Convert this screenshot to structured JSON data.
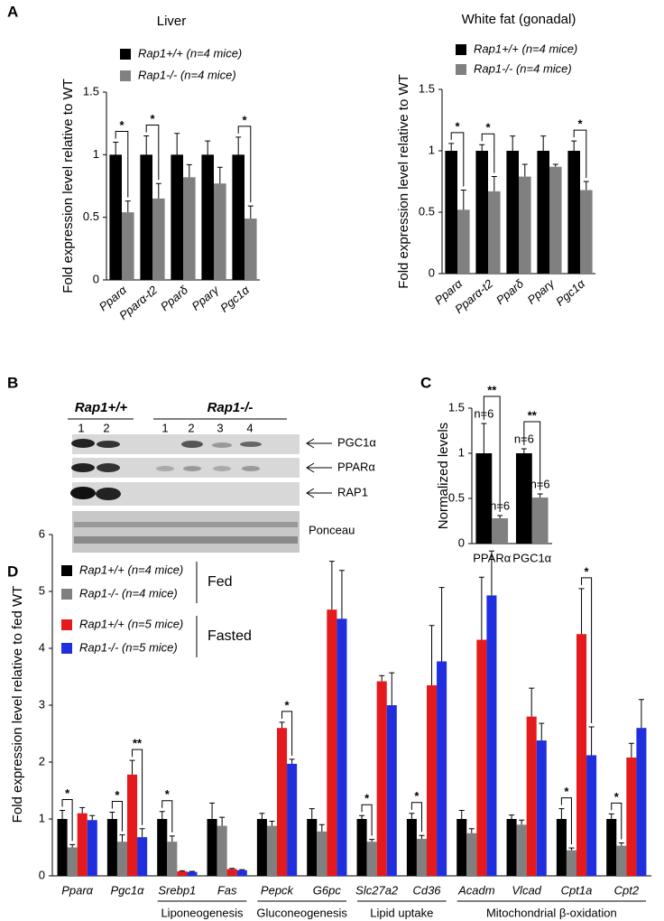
{
  "panels": [
    "A",
    "B",
    "C",
    "D"
  ],
  "blot": {
    "genotypes": [
      "Rap1+/+",
      "Rap1-/-"
    ],
    "lanes": [
      "1",
      "2",
      "1",
      "2",
      "3",
      "4"
    ],
    "bands": [
      "PGC1α",
      "PPARα",
      "RAP1",
      "Ponceau"
    ]
  },
  "chart_data": [
    {
      "type": "bar",
      "title": "Liver",
      "y_label": "Fold expression level relative to WT",
      "categories": [
        "Pparα",
        "Pparα-t2",
        "Pparδ",
        "Pparγ",
        "Pgc1α"
      ],
      "italic_categories": true,
      "series": [
        {
          "name": "Rap1+/+ (n=4 mice)",
          "color": "#000000",
          "values": [
            1,
            1,
            1,
            1,
            1
          ],
          "errors": [
            0.1,
            0.15,
            0.17,
            0.11,
            0.14
          ]
        },
        {
          "name": "Rap1-/- (n=4 mice)",
          "color": "#808080",
          "values": [
            0.54,
            0.65,
            0.82,
            0.77,
            0.49
          ],
          "errors": [
            0.09,
            0.12,
            0.1,
            0.13,
            0.1
          ]
        }
      ],
      "significance": [
        {
          "pair": [
            0,
            1
          ],
          "labels": [
            "*",
            "*",
            null,
            null,
            "*"
          ]
        }
      ],
      "ylim": [
        0,
        1.5
      ],
      "yticks": [
        0,
        0.5,
        1,
        1.5
      ]
    },
    {
      "type": "bar",
      "title": "White fat (gonadal)",
      "y_label": "Fold expression level relative to WT",
      "categories": [
        "Pparα",
        "Pparα-t2",
        "Pparδ",
        "Pparγ",
        "Pgc1α"
      ],
      "italic_categories": true,
      "series": [
        {
          "name": "Rap1+/+ (n=4 mice)",
          "color": "#000000",
          "values": [
            1,
            1,
            1,
            1,
            1
          ],
          "errors": [
            0.06,
            0.05,
            0.12,
            0.12,
            0.08
          ]
        },
        {
          "name": "Rap1-/- (n=4 mice)",
          "color": "#808080",
          "values": [
            0.52,
            0.67,
            0.79,
            0.87,
            0.68
          ],
          "errors": [
            0.16,
            0.12,
            0.1,
            0.02,
            0.07
          ]
        }
      ],
      "significance": [
        {
          "pair": [
            0,
            1
          ],
          "labels": [
            "*",
            "*",
            null,
            null,
            "*"
          ]
        }
      ],
      "ylim": [
        0,
        1.5
      ],
      "yticks": [
        0,
        0.5,
        1,
        1.5
      ]
    },
    {
      "type": "bar",
      "y_label": "Normalized levels",
      "categories": [
        "PPARα",
        "PGC1α"
      ],
      "italic_categories": false,
      "series": [
        {
          "color": "#000000",
          "values": [
            1,
            1
          ],
          "errors": [
            0.33,
            0.05
          ],
          "bar_labels": [
            "n=6",
            "n=6"
          ]
        },
        {
          "color": "#808080",
          "values": [
            0.28,
            0.51
          ],
          "errors": [
            0.03,
            0.04
          ],
          "bar_labels": [
            "n=6",
            "n=6"
          ]
        }
      ],
      "significance": [
        {
          "pair": [
            0,
            1
          ],
          "labels": [
            "**",
            "**"
          ]
        }
      ],
      "ylim": [
        0,
        1.5
      ],
      "yticks": [
        0,
        0.5,
        1,
        1.5
      ]
    },
    {
      "type": "bar",
      "y_label": "Fold expression level relative to fed WT",
      "categories": [
        "Pparα",
        "Pgc1α",
        "Srebp1",
        "Fas",
        "Pepck",
        "G6pc",
        "Slc27a2",
        "Cd36",
        "Acadm",
        "Vlcad",
        "Cpt1a",
        "Cpt2"
      ],
      "italic_categories": true,
      "series": [
        {
          "name": "Rap1+/+ (n=4 mice)",
          "color": "#000000",
          "values": [
            1,
            1,
            1,
            1,
            1,
            1,
            1,
            1,
            1,
            1,
            1,
            1
          ],
          "errors": [
            0.15,
            0.12,
            0.13,
            0.28,
            0.1,
            0.18,
            0.06,
            0.1,
            0.15,
            0.07,
            0.18,
            0.09
          ]
        },
        {
          "name": "Rap1-/- (n=4 mice)",
          "color": "#808080",
          "values": [
            0.5,
            0.6,
            0.6,
            0.88,
            0.88,
            0.78,
            0.6,
            0.65,
            0.75,
            0.9,
            0.45,
            0.53
          ],
          "errors": [
            0.05,
            0.12,
            0.1,
            0.15,
            0.08,
            0.12,
            0.04,
            0.06,
            0.08,
            0.08,
            0.04,
            0.05
          ]
        },
        {
          "name": "Rap1+/+ (n=5 mice)",
          "color": "#e41a1c",
          "values": [
            1.1,
            1.78,
            0.08,
            0.12,
            2.6,
            4.68,
            3.42,
            3.35,
            4.15,
            2.8,
            4.25,
            2.08
          ],
          "errors": [
            0.1,
            0.25,
            0.01,
            0.01,
            0.1,
            0.85,
            0.1,
            1.05,
            1.1,
            0.5,
            0.8,
            0.25
          ]
        },
        {
          "name": "Rap1-/- (n=5 mice)",
          "color": "#1f2fe0",
          "values": [
            0.98,
            0.68,
            0.07,
            0.1,
            1.97,
            4.52,
            3.0,
            3.77,
            4.93,
            2.38,
            2.12,
            2.6
          ],
          "errors": [
            0.08,
            0.15,
            0.01,
            0.01,
            0.08,
            0.85,
            0.57,
            1.3,
            0.78,
            0.3,
            0.5,
            0.5
          ]
        }
      ],
      "legend_groups": [
        {
          "label": "Fed",
          "series": [
            0,
            1
          ]
        },
        {
          "label": "Fasted",
          "series": [
            2,
            3
          ]
        }
      ],
      "groups": [
        {
          "label": "Liponeogenesis",
          "from": 2,
          "to": 3
        },
        {
          "label": "Gluconeogenesis",
          "from": 4,
          "to": 5
        },
        {
          "label": "Lipid uptake",
          "from": 6,
          "to": 7
        },
        {
          "label": "Mitochondrial β-oxidation",
          "from": 8,
          "to": 11
        }
      ],
      "significance": [
        {
          "pair": [
            0,
            1
          ],
          "labels": [
            "*",
            "*",
            "*",
            null,
            null,
            null,
            "*",
            "*",
            null,
            null,
            "*",
            "*"
          ]
        },
        {
          "pair": [
            2,
            3
          ],
          "labels": [
            null,
            "**",
            null,
            null,
            "*",
            null,
            null,
            null,
            null,
            null,
            "*",
            null
          ]
        }
      ],
      "ylim": [
        0,
        6
      ],
      "yticks": [
        0,
        1,
        2,
        3,
        4,
        5,
        6
      ]
    }
  ]
}
